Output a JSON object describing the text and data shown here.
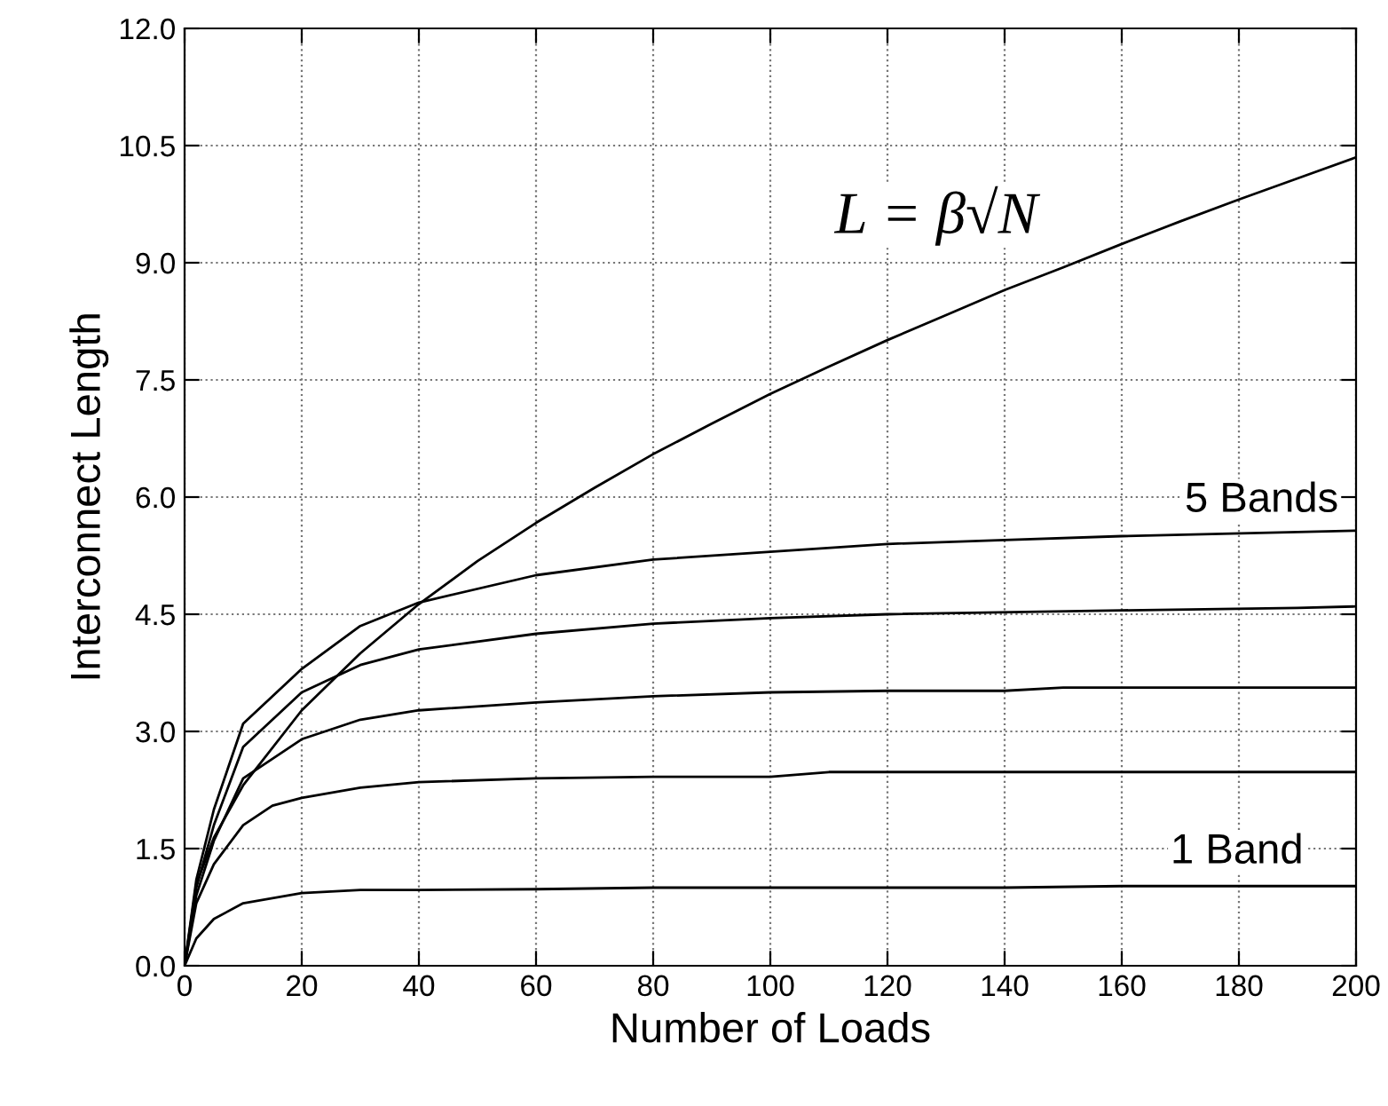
{
  "chart_data": {
    "type": "line",
    "xlabel": "Number of Loads",
    "ylabel": "Interconnect Length",
    "xlim": [
      0,
      200
    ],
    "xticks": [
      0,
      20,
      40,
      60,
      80,
      100,
      120,
      140,
      160,
      180,
      200
    ],
    "ylim": [
      0,
      12
    ],
    "yticks": [
      {
        "value": 0,
        "label": "0.0"
      },
      {
        "value": 1.5,
        "label": "1.5"
      },
      {
        "value": 3,
        "label": "3.0"
      },
      {
        "value": 4.5,
        "label": "4.5"
      },
      {
        "value": 6,
        "label": "6.0"
      },
      {
        "value": 7.5,
        "label": "7.5"
      },
      {
        "value": 9,
        "label": "9.0"
      },
      {
        "value": 10.5,
        "label": "10.5"
      },
      {
        "value": 12,
        "label": "12.0"
      }
    ],
    "grid": true,
    "legend": false,
    "marker": "none",
    "line_style": "solid",
    "series": [
      {
        "color": "#000000",
        "x": [
          0,
          2,
          5,
          10,
          20,
          30,
          40,
          60,
          80,
          100,
          120,
          140,
          160,
          180,
          200
        ],
        "values": [
          0,
          0.35,
          0.6,
          0.8,
          0.93,
          0.97,
          0.97,
          0.98,
          1.0,
          1.0,
          1.0,
          1.0,
          1.02,
          1.02,
          1.02
        ]
      },
      {
        "color": "#000000",
        "x": [
          0,
          2,
          5,
          10,
          15,
          20,
          30,
          40,
          60,
          80,
          100,
          110,
          140,
          170,
          200
        ],
        "values": [
          0,
          0.8,
          1.3,
          1.8,
          2.05,
          2.15,
          2.28,
          2.35,
          2.4,
          2.42,
          2.42,
          2.48,
          2.48,
          2.48,
          2.48
        ]
      },
      {
        "color": "#000000",
        "x": [
          0,
          2,
          5,
          10,
          20,
          30,
          40,
          60,
          80,
          100,
          120,
          140,
          150,
          200
        ],
        "values": [
          0,
          0.9,
          1.6,
          2.4,
          2.9,
          3.15,
          3.27,
          3.37,
          3.45,
          3.5,
          3.52,
          3.52,
          3.56,
          3.56
        ]
      },
      {
        "color": "#000000",
        "x": [
          0,
          2,
          5,
          10,
          20,
          30,
          40,
          60,
          80,
          100,
          120,
          160,
          190,
          200
        ],
        "values": [
          0,
          1.0,
          1.8,
          2.8,
          3.5,
          3.85,
          4.05,
          4.25,
          4.38,
          4.45,
          4.5,
          4.55,
          4.58,
          4.6
        ]
      },
      {
        "color": "#000000",
        "x": [
          0,
          2,
          5,
          10,
          20,
          30,
          40,
          60,
          80,
          100,
          120,
          140,
          160,
          200
        ],
        "values": [
          0,
          1.1,
          2.0,
          3.1,
          3.8,
          4.35,
          4.65,
          5.0,
          5.2,
          5.3,
          5.4,
          5.45,
          5.5,
          5.57
        ]
      },
      {
        "color": "#000000",
        "x": [
          0,
          2,
          5,
          10,
          20,
          30,
          40,
          50,
          60,
          70,
          80,
          90,
          100,
          110,
          120,
          130,
          140,
          150,
          160,
          170,
          180,
          190,
          200
        ],
        "values": [
          0,
          1.04,
          1.64,
          2.31,
          3.27,
          4.0,
          4.63,
          5.18,
          5.67,
          6.12,
          6.55,
          6.94,
          7.32,
          7.67,
          8.01,
          8.33,
          8.65,
          8.94,
          9.24,
          9.53,
          9.81,
          10.08,
          10.35
        ]
      }
    ],
    "annotations": [
      "L = β√N",
      "5 Bands",
      "1 Band"
    ]
  }
}
